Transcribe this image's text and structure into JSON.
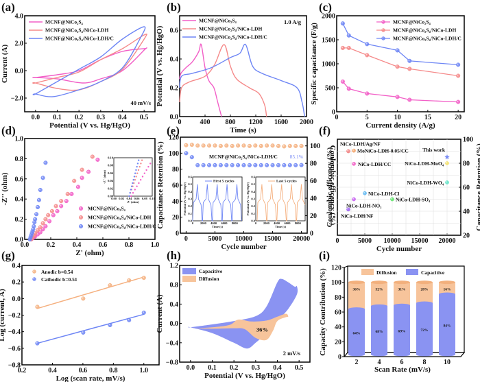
{
  "colors": {
    "pink": "#f25fc7",
    "salmon": "#f58a8a",
    "blue": "#6e86f5",
    "orange": "#f5b07f",
    "capacitive": "#8a93f2",
    "diffusion": "#f7c49b"
  },
  "chart_data": [
    {
      "id": "a",
      "panel_label": "(a)",
      "type": "line",
      "title": "",
      "xlabel": "Potential (V vs. Hg/HgO)",
      "ylabel": "Current (A)",
      "xlim": [
        -0.05,
        0.55
      ],
      "ylim": [
        -3,
        4
      ],
      "xticks": [
        "0.0",
        "0.1",
        "0.2",
        "0.3",
        "0.4",
        "0.5"
      ],
      "yticks": [
        "-2.0",
        "0.0",
        "2.0",
        "4.0"
      ],
      "annotation": "40 mV/s",
      "legend": "top-left",
      "series": [
        {
          "name": "MCNF@NiCo₂S₄",
          "color": "pink",
          "x": [
            0.0,
            0.1,
            0.2,
            0.3,
            0.4,
            0.5,
            0.5,
            0.4,
            0.3,
            0.22,
            0.1,
            0.0
          ],
          "y": [
            -0.5,
            -0.3,
            0.0,
            0.8,
            1.4,
            1.6,
            1.5,
            0.0,
            -0.6,
            -0.9,
            -0.6,
            -0.5
          ]
        },
        {
          "name": "MCNF@NiCo₂S₄/NiCo-LDH",
          "color": "salmon",
          "x": [
            0.0,
            0.1,
            0.2,
            0.3,
            0.4,
            0.5,
            0.5,
            0.4,
            0.3,
            0.2,
            0.1,
            0.0
          ],
          "y": [
            -0.9,
            -0.5,
            -0.1,
            0.8,
            1.6,
            2.6,
            2.3,
            0.1,
            -0.8,
            -1.4,
            -1.3,
            -0.9
          ]
        },
        {
          "name": "MCNF@NiCo₂S₄/NiCo-LDH/C",
          "color": "blue",
          "x": [
            0.0,
            0.1,
            0.2,
            0.3,
            0.4,
            0.5,
            0.48,
            0.4,
            0.3,
            0.2,
            0.08,
            0.0
          ],
          "y": [
            -1.7,
            -0.8,
            0.1,
            1.0,
            2.3,
            3.2,
            2.3,
            0.2,
            -0.8,
            -1.4,
            -1.9,
            -1.7
          ]
        }
      ]
    },
    {
      "id": "b",
      "panel_label": "(b)",
      "type": "line",
      "xlabel": "Time (s)",
      "ylabel": "Potential (V vs. Hg/HgO)",
      "xlim": [
        0,
        2000
      ],
      "ylim": [
        0,
        0.7
      ],
      "xticks": [
        "0",
        "400",
        "800",
        "1200",
        "1600",
        "2000"
      ],
      "yticks": [
        "0.0",
        "0.2",
        "0.4",
        "0.6"
      ],
      "annotation": "1.0 A/g",
      "legend": "top-left",
      "series": [
        {
          "name": "MCNF@NiCo₂S₄",
          "color": "pink",
          "x": [
            0,
            20,
            100,
            200,
            300,
            340,
            400,
            460,
            540,
            600,
            660
          ],
          "y": [
            0.26,
            0.3,
            0.34,
            0.38,
            0.45,
            0.5,
            0.34,
            0.25,
            0.2,
            0.1,
            0.0
          ]
        },
        {
          "name": "MCNF@NiCo₂S₄/NiCo-LDH",
          "color": "salmon",
          "x": [
            0,
            30,
            150,
            400,
            550,
            700,
            800,
            900,
            1100,
            1250,
            1340,
            1370
          ],
          "y": [
            0.1,
            0.2,
            0.24,
            0.28,
            0.36,
            0.5,
            0.35,
            0.26,
            0.2,
            0.16,
            0.08,
            0.0
          ]
        },
        {
          "name": "MCNF@NiCo₂S₄/NiCo-LDH/C",
          "color": "blue",
          "x": [
            0,
            30,
            200,
            500,
            800,
            950,
            1040,
            1150,
            1300,
            1600,
            1850,
            1930,
            1970
          ],
          "y": [
            0.2,
            0.28,
            0.3,
            0.34,
            0.41,
            0.44,
            0.5,
            0.35,
            0.3,
            0.25,
            0.2,
            0.1,
            0.0
          ]
        }
      ]
    },
    {
      "id": "c",
      "panel_label": "(c)",
      "type": "line",
      "xlabel": "Current density (A/g)",
      "ylabel": "Specific capacitance (F/g)",
      "xlim": [
        0,
        21
      ],
      "ylim": [
        0,
        2000
      ],
      "xticks": [
        "0",
        "5",
        "10",
        "15",
        "20"
      ],
      "yticks": [
        "0",
        "500",
        "1000",
        "1500",
        "2000"
      ],
      "legend": "top-right",
      "x": [
        1,
        2,
        5,
        10,
        12,
        20
      ],
      "series": [
        {
          "name": "MCNF@NiCo₂S₄",
          "color": "pink",
          "values": [
            630,
            480,
            380,
            310,
            250,
            205
          ]
        },
        {
          "name": "MCNF@NiCo₂S₄/NiCo-LDH",
          "color": "salmon",
          "values": [
            1330,
            1330,
            1180,
            940,
            895,
            750
          ]
        },
        {
          "name": "MCNF@NiCo₂S₄/NiCo-LDH/C",
          "color": "blue",
          "values": [
            1840,
            1590,
            1410,
            1280,
            1060,
            980
          ]
        }
      ]
    },
    {
      "id": "d",
      "panel_label": "(d)",
      "type": "scatter",
      "xlabel": "Z' (ohm)",
      "ylabel": "-Z'' (ohm)",
      "xlim": [
        0,
        1.0
      ],
      "ylim": [
        0,
        1.0
      ],
      "xticks": [
        "0.0",
        "0.2",
        "0.4",
        "0.6",
        "0.8",
        "1.0"
      ],
      "yticks": [
        "0.0",
        "0.2",
        "0.4",
        "0.6",
        "0.8",
        "1.0"
      ],
      "legend": "bottom-right",
      "inset": {
        "xlabel": "Z' (ohm)",
        "ylabel": "-Z'' (ohm)",
        "xticks": [
          "0.00",
          "0.02",
          "0.04",
          "0.06",
          "0.08",
          "0.10"
        ],
        "yticks": [
          "0.00",
          "0.02",
          "0.04",
          "0.06",
          "0.08",
          "0.10"
        ]
      },
      "series": [
        {
          "name": "MCNF@NiCo₂S₄",
          "color": "pink",
          "x": [
            0.05,
            0.06,
            0.07,
            0.08,
            0.1,
            0.12,
            0.14,
            0.16,
            0.19,
            0.22,
            0.25,
            0.28,
            0.32,
            0.36,
            0.41,
            0.44,
            0.49,
            0.56
          ],
          "y": [
            0.0,
            0.01,
            0.02,
            0.03,
            0.05,
            0.07,
            0.1,
            0.13,
            0.18,
            0.24,
            0.28,
            0.33,
            0.38,
            0.45,
            0.52,
            0.61,
            0.67,
            0.79
          ]
        },
        {
          "name": "MCNF@NiCo₂S₄/NiCo-LDH",
          "color": "salmon",
          "x": [
            0.05,
            0.06,
            0.07,
            0.08,
            0.1,
            0.12,
            0.14,
            0.16,
            0.18,
            0.21,
            0.24,
            0.28,
            0.33,
            0.38,
            0.44,
            0.52
          ],
          "y": [
            0.0,
            0.02,
            0.04,
            0.06,
            0.09,
            0.12,
            0.16,
            0.2,
            0.24,
            0.28,
            0.33,
            0.38,
            0.45,
            0.58,
            0.69,
            0.82
          ]
        },
        {
          "name": "MCNF@NiCo₂S₄/NiCo-LDH/C",
          "color": "blue",
          "x": [
            0.04,
            0.045,
            0.05,
            0.055,
            0.06,
            0.065,
            0.07,
            0.075,
            0.08,
            0.09,
            0.1,
            0.11,
            0.12,
            0.14,
            0.16
          ],
          "y": [
            0.0,
            0.02,
            0.04,
            0.06,
            0.08,
            0.1,
            0.13,
            0.17,
            0.2,
            0.25,
            0.32,
            0.39,
            0.49,
            0.61,
            0.76
          ]
        }
      ]
    },
    {
      "id": "e",
      "panel_label": "(e)",
      "type": "scatter",
      "xlabel": "Cycle number",
      "ylabel": "Capacitance Retention (%)",
      "ylabel_right": "Coulombic efficency (%)",
      "xlim": [
        -1000,
        21000
      ],
      "ylim": [
        0,
        120
      ],
      "ylim_right": [
        0,
        110
      ],
      "xticks": [
        "0",
        "5000",
        "10000",
        "15000",
        "20000"
      ],
      "yticks": [
        "0",
        "20",
        "40",
        "60",
        "80",
        "100",
        "120"
      ],
      "yticks_right": [
        "0",
        "20",
        "40",
        "60",
        "80",
        "100"
      ],
      "annotation": "MCNF@NiCo₂S₄/NiCo-LDH/C",
      "annotation_value": "85.1%",
      "series": [
        {
          "name": "Coulombic efficiency",
          "color": "orange",
          "x": [
            0,
            1000,
            2000,
            3000,
            4000,
            5000,
            6000,
            7000,
            8000,
            9000,
            10000,
            11000,
            12000,
            13000,
            14000,
            15000,
            16000,
            17000,
            18000,
            19000,
            20000
          ],
          "y": [
            110,
            110.5,
            109.5,
            109.5,
            109.5,
            109.5,
            109,
            109.5,
            109,
            109.5,
            109.5,
            109,
            109.5,
            109,
            109.5,
            109.5,
            109,
            108.5,
            109,
            109,
            109
          ]
        },
        {
          "name": "Capacitance retention",
          "color": "blue",
          "x": [
            0,
            1000,
            2000,
            3000,
            4000,
            5000,
            6000,
            7000,
            8000,
            9000,
            10000,
            11000,
            12000,
            13000,
            14000,
            15000,
            16000,
            17000,
            18000,
            19000,
            20000
          ],
          "y": [
            100,
            95,
            85,
            85,
            85,
            85,
            85,
            85,
            85,
            85,
            85,
            85,
            85,
            85,
            85,
            85,
            85,
            85,
            85,
            85,
            85.1
          ]
        }
      ],
      "insets": [
        {
          "title": "First 5 cycles",
          "color": "blue",
          "xlabel": "Time (s)",
          "ylabel": "Potential (V vs. Hg/HgO)",
          "xticks": [
            "0",
            "2000",
            "4000",
            "6000",
            "8000"
          ],
          "yticks": [
            "0.0",
            "0.1",
            "0.2",
            "0.3",
            "0.4",
            "0.5",
            "0.6"
          ]
        },
        {
          "title": "Last 5 cycles",
          "color": "orange",
          "xlabel": "Time (s)",
          "ylabel": "Potential (V vs. Hg/HgO)",
          "xticks": [
            "0",
            "2000",
            "4000",
            "6000",
            "8000"
          ],
          "yticks": [
            "0.0",
            "0.1",
            "0.2",
            "0.3",
            "0.4",
            "0.5",
            "0.6"
          ]
        }
      ]
    },
    {
      "id": "f",
      "panel_label": "(f)",
      "type": "scatter",
      "xlabel": "Cycle number",
      "ylabel": "Capacitance Retention (%)",
      "xlim": [
        0,
        22500
      ],
      "ylim": [
        20,
        100
      ],
      "xticks": [
        "0",
        "5000",
        "10000",
        "15000",
        "20000"
      ],
      "yticks": [
        "20",
        "40",
        "60",
        "80",
        "100"
      ],
      "points": [
        {
          "label": "NiCo-LDH/Ag/NF",
          "x": 2000,
          "y": 90,
          "color": "#f27f7f"
        },
        {
          "label": "MoNiCo-LDH-0.05/CC",
          "x": 3000,
          "y": 90.5,
          "color": "#f5a46a"
        },
        {
          "label": "NiCo-LDH/CC",
          "x": 3000,
          "y": 79.5,
          "color": "#f25fc7"
        },
        {
          "label": "This work",
          "x": 20000,
          "y": 85.1,
          "color": "#7a8cf5",
          "marker": "star"
        },
        {
          "label": "NiCo-LDH-MoO₄",
          "x": 20000,
          "y": 80,
          "color": "#f5e26a"
        },
        {
          "label": "NiCo-LDH-WO₄",
          "x": 20000,
          "y": 64,
          "color": "#5ee3c7"
        },
        {
          "label": "NiCo-LDH-Cl",
          "x": 5000,
          "y": 55,
          "color": "#5fb8f2"
        },
        {
          "label": "NiCo-LDH-SO₄",
          "x": 10000,
          "y": 50,
          "color": "#5fe36a"
        },
        {
          "label": "NiCo-LDH-NO₃",
          "x": 3000,
          "y": 50,
          "color": "#c75ff2"
        },
        {
          "label": "NiCo-LDH/NF",
          "x": 2000,
          "y": 41.5,
          "color": "#9a5ff2"
        }
      ]
    },
    {
      "id": "g",
      "panel_label": "(g)",
      "type": "scatter",
      "xlabel": "Log (scan rate, mV/s)",
      "ylabel": "Log (current, A)",
      "xlim": [
        0.2,
        1.1
      ],
      "ylim": [
        -0.8,
        0.4
      ],
      "xticks": [
        "0.2",
        "0.4",
        "0.6",
        "0.8",
        "1.0"
      ],
      "yticks": [
        "-0.8",
        "-0.6",
        "-0.4",
        "-0.2",
        "0.0",
        "0.2",
        "0.4"
      ],
      "legend": "top-left",
      "x": [
        0.301,
        0.602,
        0.778,
        0.903,
        1.0
      ],
      "series": [
        {
          "name": "Anodic b=0.54",
          "color": "orange",
          "values": [
            -0.1,
            0.0,
            0.16,
            0.22,
            0.25
          ],
          "fit": [
            -0.12,
            0.26
          ]
        },
        {
          "name": "Cathodic b=0.51",
          "color": "blue",
          "values": [
            -0.54,
            -0.41,
            -0.32,
            -0.26,
            -0.17
          ],
          "fit": [
            -0.54,
            -0.19
          ]
        }
      ]
    },
    {
      "id": "h",
      "panel_label": "(h)",
      "type": "area",
      "xlabel": "Potential (V vs. Hg/HgO)",
      "ylabel": "Current (A)",
      "xlim": [
        -0.05,
        0.55
      ],
      "ylim": [
        -0.8,
        1.2
      ],
      "xticks": [
        "0.0",
        "0.1",
        "0.2",
        "0.3",
        "0.4",
        "0.5"
      ],
      "yticks": [
        "-0.8",
        "-0.4",
        "0.0",
        "0.4",
        "0.8",
        "1.2"
      ],
      "annotation": "36%",
      "annotation2": "2 mV/s",
      "legend": "top-left",
      "series": [
        {
          "name": "Capacitive",
          "color": "capacitive",
          "x": [
            0.0,
            0.1,
            0.2,
            0.3,
            0.35,
            0.4,
            0.42,
            0.45,
            0.48,
            0.49,
            0.49,
            0.45,
            0.4,
            0.35,
            0.3,
            0.26,
            0.2,
            0.1,
            0.0
          ],
          "y": [
            -0.08,
            -0.02,
            0.05,
            0.15,
            0.35,
            0.85,
            0.92,
            0.85,
            0.76,
            0.77,
            0.6,
            0.3,
            0.05,
            -0.2,
            -0.4,
            -0.52,
            -0.4,
            -0.2,
            -0.08
          ]
        },
        {
          "name": "Diffusion",
          "color": "diffusion",
          "x": [
            0.02,
            0.1,
            0.18,
            0.22,
            0.28,
            0.35,
            0.4,
            0.44,
            0.45,
            0.44,
            0.4,
            0.38,
            0.35,
            0.3,
            0.25,
            0.2,
            0.1,
            0.02
          ],
          "y": [
            -0.1,
            -0.08,
            -0.03,
            0.08,
            0.04,
            0.06,
            0.14,
            0.2,
            0.14,
            0.13,
            0.05,
            -0.15,
            -0.34,
            -0.3,
            -0.12,
            -0.1,
            -0.11,
            -0.1
          ]
        }
      ]
    },
    {
      "id": "i",
      "panel_label": "(i)",
      "type": "bar",
      "xlabel": "Scan Rate (mV/s)",
      "ylabel": "Capacity Contribution (%)",
      "ylim": [
        0,
        120
      ],
      "categories": [
        "2",
        "4",
        "6",
        "8",
        "10"
      ],
      "yticks": [
        "0",
        "20",
        "40",
        "60",
        "80",
        "100",
        "120"
      ],
      "legend": "top",
      "series": [
        {
          "name": "Capacitive",
          "color": "capacitive",
          "values": [
            64,
            68,
            69,
            72,
            84
          ],
          "labels": [
            "64%",
            "68%",
            "69%",
            "72%",
            "84%"
          ]
        },
        {
          "name": "Diffusion",
          "color": "diffusion",
          "values": [
            36,
            32,
            31,
            28,
            16
          ],
          "labels": [
            "36%",
            "32%",
            "31%",
            "28%",
            "16%"
          ]
        }
      ]
    }
  ]
}
